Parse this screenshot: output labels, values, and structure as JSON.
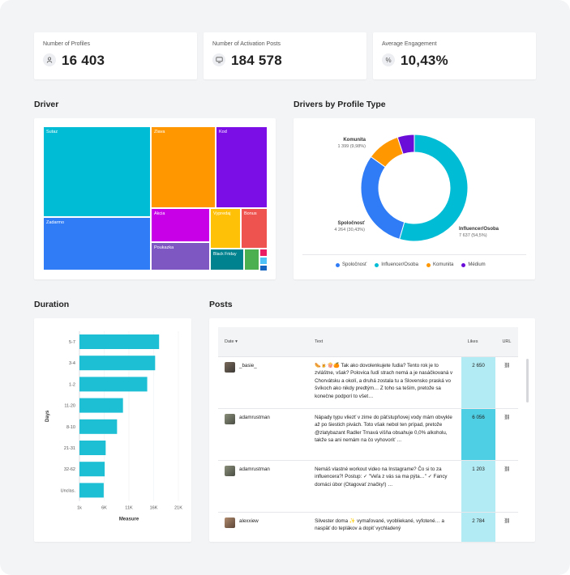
{
  "kpis": [
    {
      "label": "Number of Profiles",
      "value": "16 403",
      "icon": "user-icon"
    },
    {
      "label": "Number of Activation Posts",
      "value": "184 578",
      "icon": "monitor-icon"
    },
    {
      "label": "Average Engagement",
      "value": "10,43%",
      "icon": "percent-icon"
    }
  ],
  "driver": {
    "title": "Driver",
    "cells": [
      {
        "label": "Sutaz",
        "color": "#00bcd4"
      },
      {
        "label": "Zadarmo",
        "color": "#2f7cf6"
      },
      {
        "label": "Zlava",
        "color": "#ff9800"
      },
      {
        "label": "Kod",
        "color": "#7b0de6"
      },
      {
        "label": "Akcia",
        "color": "#c800e8"
      },
      {
        "label": "Vypredaj",
        "color": "#ffc107"
      },
      {
        "label": "Bonus",
        "color": "#ef5350"
      },
      {
        "label": "Poukazka",
        "color": "#7e57c2"
      },
      {
        "label": "Black Friday",
        "color": "#00838f"
      },
      {
        "label": "",
        "color": "#4caf50"
      },
      {
        "label": "",
        "color": "#e91e63"
      },
      {
        "label": "",
        "color": "#4fc3f7"
      },
      {
        "label": "",
        "color": "#1565c0"
      }
    ]
  },
  "drivers_by_type": {
    "title": "Drivers by Profile Type",
    "chart_data": {
      "type": "pie",
      "donut": true,
      "slices": [
        {
          "name": "Influencer/Osoba",
          "value": 7637,
          "label": "7 637 (54,5%)",
          "color": "#00bcd4"
        },
        {
          "name": "Spoločnosť",
          "value": 4264,
          "label": "4 264 (30,43%)",
          "color": "#2f7cf6"
        },
        {
          "name": "Komunita",
          "value": 1399,
          "label": "1 399 (9,98%)",
          "color": "#ff9800"
        },
        {
          "name": "Médium",
          "value": 715,
          "label": "",
          "color": "#6a0dd9"
        }
      ],
      "legend": [
        "Spoločnosť",
        "Influencer/Osoba",
        "Komunita",
        "Médium"
      ],
      "legend_position": "bottom"
    }
  },
  "duration": {
    "title": "Duration",
    "chart_data": {
      "type": "bar",
      "orientation": "horizontal",
      "categories": [
        "5-7",
        "3-4",
        "1-2",
        "11-20",
        "8-10",
        "21-31",
        "32-62",
        "Unclas."
      ],
      "values": [
        17100,
        16300,
        14700,
        9800,
        8600,
        6300,
        6100,
        5900
      ],
      "xlabel": "Measure",
      "ylabel": "Days",
      "xticks": [
        "1k",
        "6K",
        "11K",
        "16K",
        "21K"
      ],
      "xlim": [
        1000,
        21000
      ],
      "color": "#1cbfd4"
    }
  },
  "posts": {
    "title": "Posts",
    "columns": {
      "date": "Date",
      "text": "Text",
      "likes": "Likes",
      "url": "URL"
    },
    "rows": [
      {
        "author": "_basie_",
        "text": "🌭🍺🍿🍊 Tak ako dovolenkujete ľudia? Tento rok je to zvláštne, však? Polovica ľudí strach nemá a je nasáčkovaná v Chorvátsku a okolí, a druhá zostala tu a Slovensko praská vo švíkoch ako nikdy predtým… Z toho sa teším, pretože sa konečne podporí to všet…",
        "likes": "2 650"
      },
      {
        "author": "adamrustman",
        "text": "Nápady typu vliezť v zime do päťstupňovej vody mám obvykle až po šiestich pivách. Toto však nebol ten prípad, pretože @zlatybazant Radler Trnavá višňa obsahuje 0,0% alkoholu, takže sa ani nemám na čo vyhovoriť …",
        "likes": "6 056"
      },
      {
        "author": "adamrustman",
        "text": "Nemáš vlastné workout video na Instagrame? Čo si to za influencera?! Postup: ✓ \"Veľa z vás sa ma pýta…\" ✓ Fancy domáci úbor (Otagovať značky!) …",
        "likes": "1 203"
      },
      {
        "author": "alexxiew",
        "text": "Silvester doma ✨ vymaľované, vyobliekané, vyfotené… a naspäť do teplákov a dopiť vychladený",
        "likes": "2 784"
      }
    ]
  }
}
